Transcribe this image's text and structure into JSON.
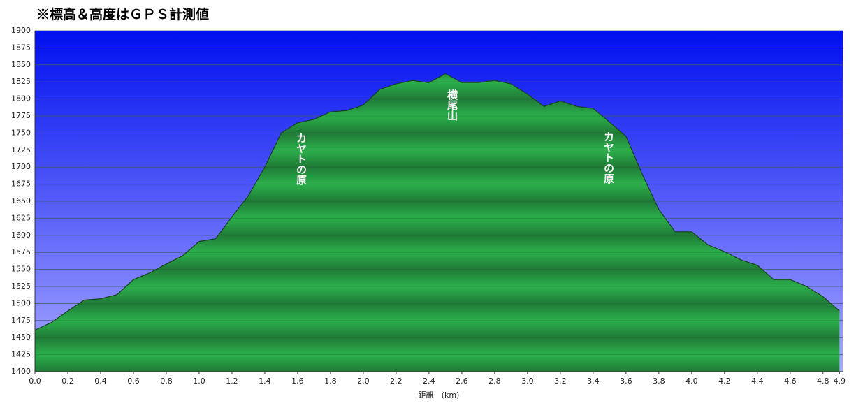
{
  "chart_data": {
    "type": "area",
    "title": "※標高＆高度はＧＰＳ計測値",
    "x_label": "距離　(km)",
    "x": [
      0.0,
      0.1,
      0.2,
      0.3,
      0.4,
      0.5,
      0.6,
      0.7,
      0.8,
      0.9,
      1.0,
      1.1,
      1.2,
      1.3,
      1.4,
      1.5,
      1.6,
      1.7,
      1.8,
      1.9,
      2.0,
      2.1,
      2.2,
      2.3,
      2.4,
      2.5,
      2.6,
      2.7,
      2.8,
      2.9,
      3.0,
      3.1,
      3.2,
      3.3,
      3.4,
      3.5,
      3.6,
      3.7,
      3.8,
      3.9,
      4.0,
      4.1,
      4.2,
      4.3,
      4.4,
      4.5,
      4.6,
      4.7,
      4.8,
      4.9
    ],
    "values": [
      1461,
      1472,
      1489,
      1505,
      1507,
      1513,
      1535,
      1545,
      1558,
      1570,
      1591,
      1595,
      1627,
      1658,
      1700,
      1750,
      1765,
      1770,
      1781,
      1783,
      1791,
      1814,
      1822,
      1827,
      1824,
      1837,
      1824,
      1824,
      1827,
      1822,
      1807,
      1789,
      1797,
      1789,
      1786,
      1766,
      1745,
      1689,
      1638,
      1605,
      1605,
      1586,
      1576,
      1564,
      1556,
      1535,
      1535,
      1525,
      1510,
      1489
    ],
    "color": "#22a040",
    "xlim": [
      0,
      4.92
    ],
    "xticks": [
      {
        "value": 0,
        "label": "0.0"
      },
      0.2,
      0.4,
      0.6,
      0.8,
      {
        "value": 1,
        "label": "1.0"
      },
      1.2,
      1.4,
      1.6,
      1.8,
      {
        "value": 2,
        "label": "2.0"
      },
      2.2,
      2.4,
      2.6,
      2.8,
      {
        "value": 3,
        "label": "3.0"
      },
      3.2,
      3.4,
      3.6,
      3.8,
      {
        "value": 4,
        "label": "4.0"
      },
      4.2,
      4.4,
      4.6,
      4.8,
      4.9
    ],
    "ylim": [
      1400,
      1900
    ],
    "yticks": [
      1400,
      1425,
      1450,
      1475,
      1500,
      1525,
      1550,
      1575,
      1600,
      1625,
      1650,
      1675,
      1700,
      1725,
      1750,
      1775,
      1800,
      1825,
      1850,
      1875,
      1900
    ],
    "grid": true,
    "annotations": [
      "カヤトの原",
      "横尾山",
      "カヤトの原"
    ]
  }
}
